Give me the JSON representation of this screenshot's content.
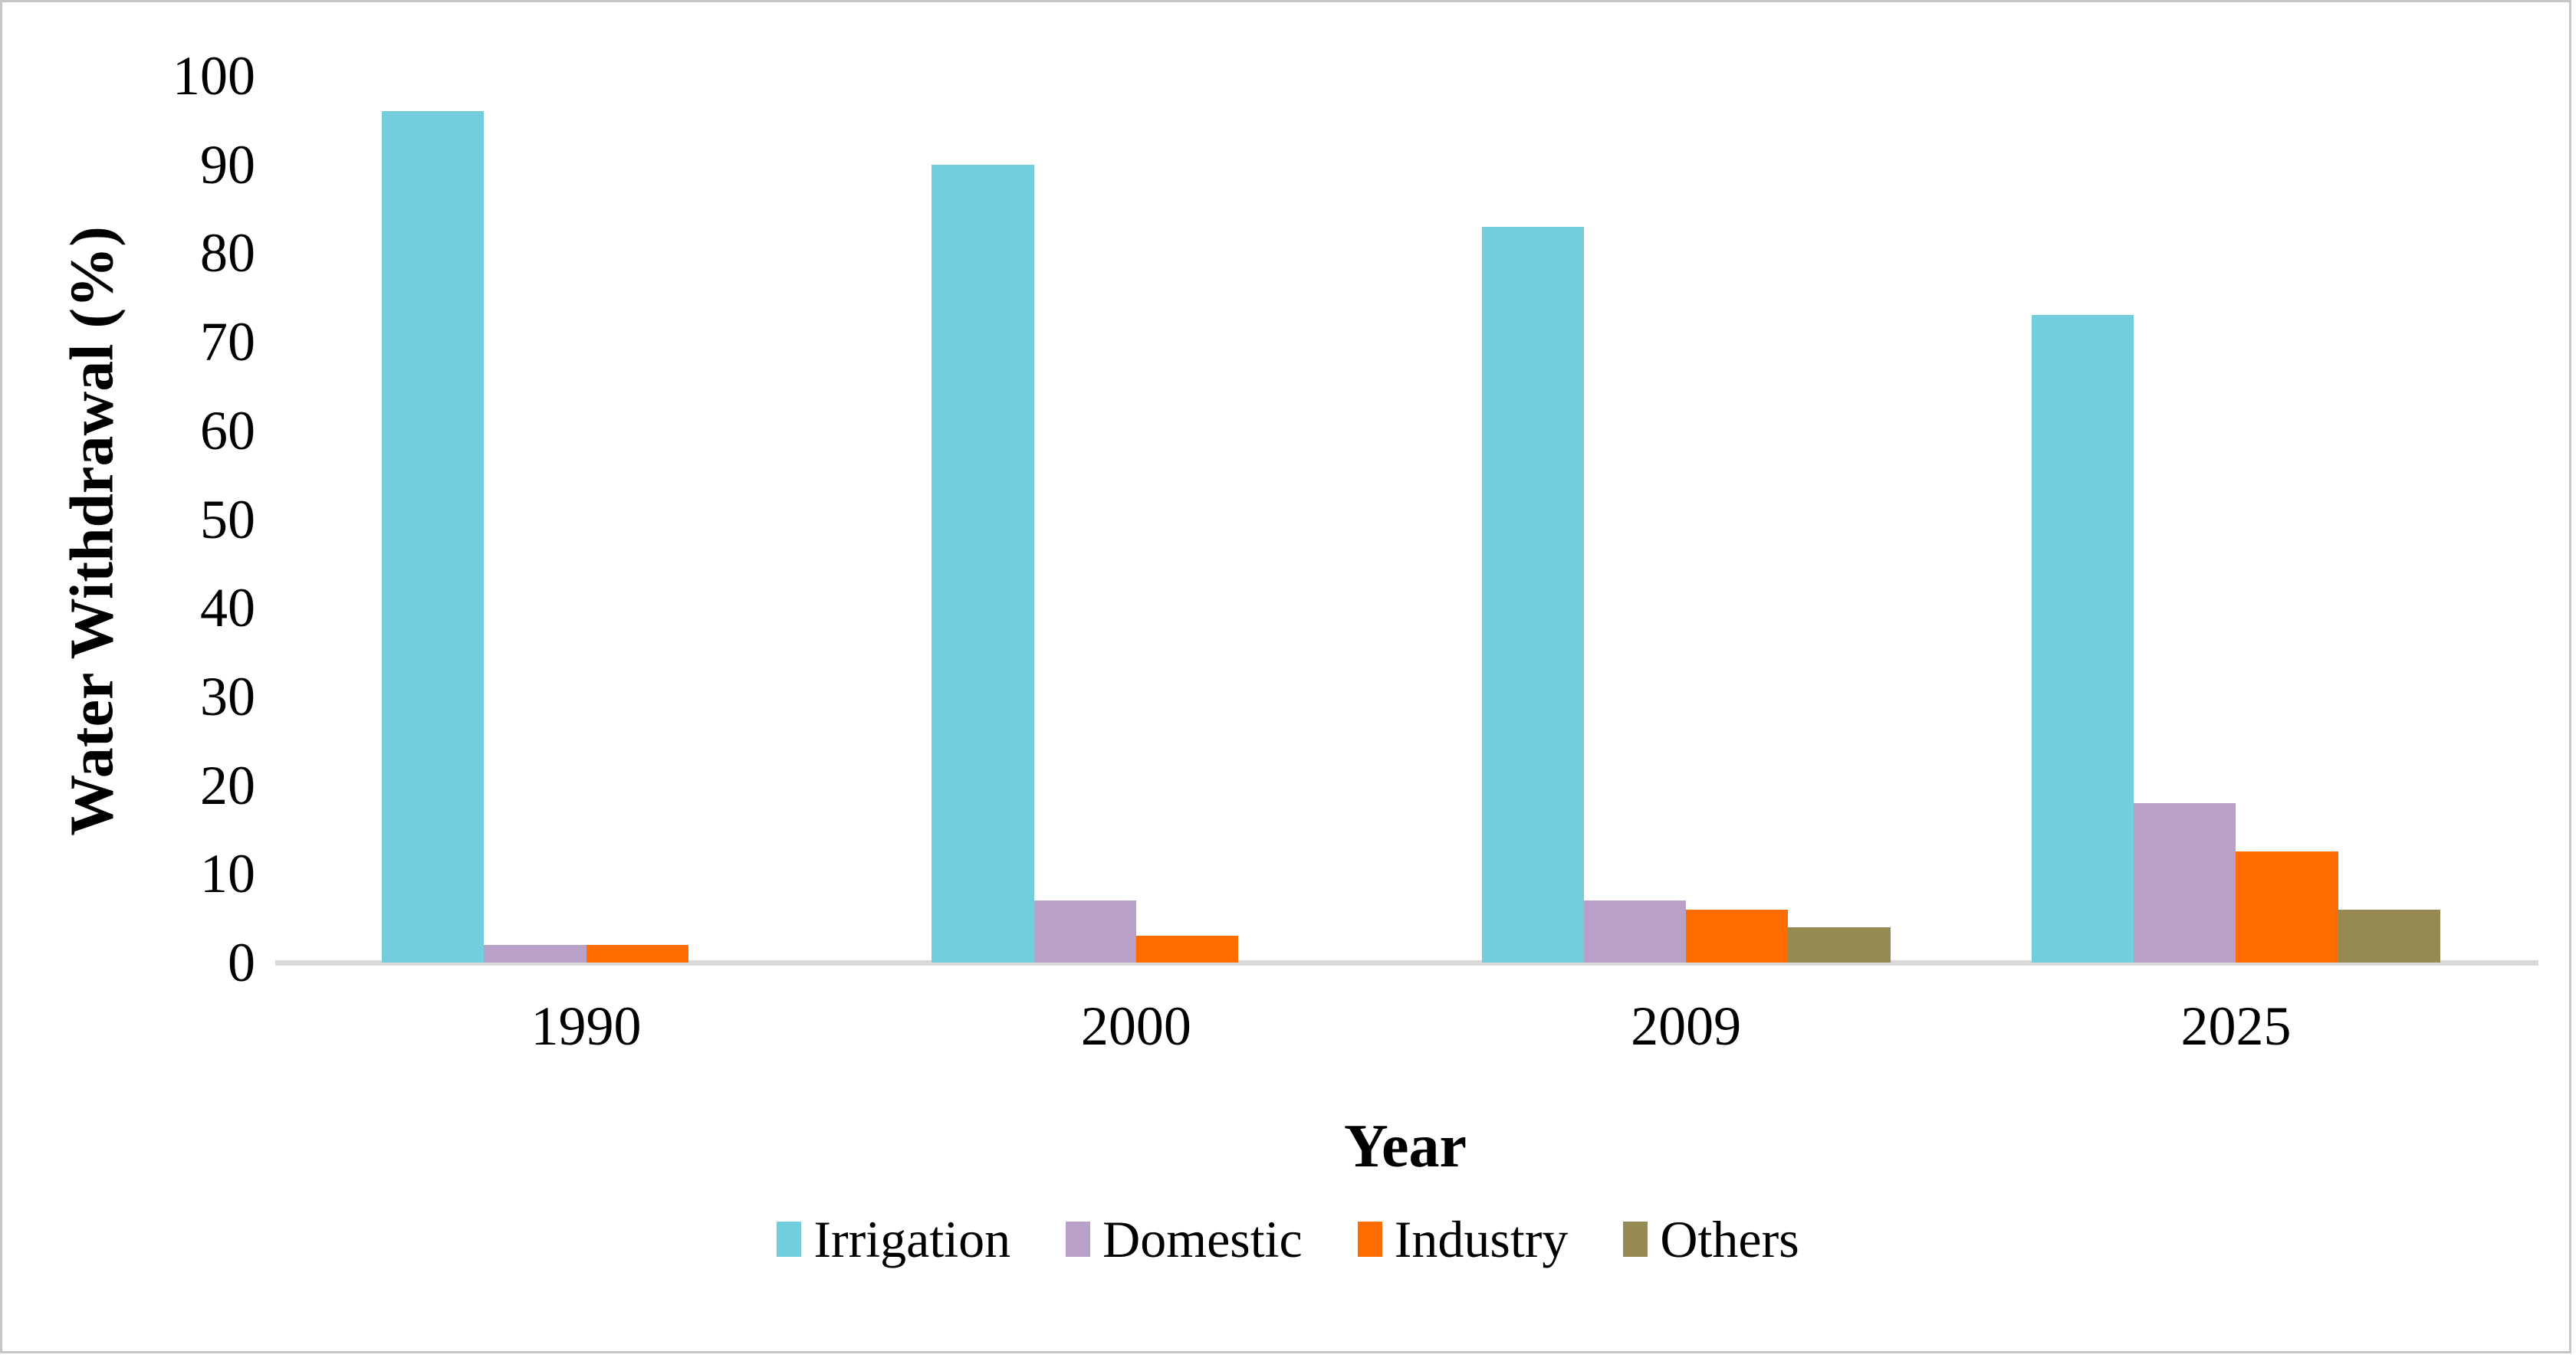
{
  "chart_data": {
    "type": "bar",
    "title": "",
    "categories": [
      "1990",
      "2000",
      "2009",
      "2025"
    ],
    "series": [
      {
        "name": "Irrigation",
        "color": "#72CDDC",
        "values": [
          96,
          90,
          83,
          73
        ]
      },
      {
        "name": "Domestic",
        "color": "#B9A0C9",
        "values": [
          2,
          7,
          7,
          18
        ]
      },
      {
        "name": "Industry",
        "color": "#FF6D01",
        "values": [
          2,
          3,
          6,
          12.5
        ]
      },
      {
        "name": "Others",
        "color": "#958A54",
        "values": [
          0,
          0,
          4,
          6
        ]
      }
    ],
    "xlabel": "Year",
    "ylabel": "Water Withdrawal (%)",
    "ylim": [
      0,
      100
    ],
    "ytick_step": 10,
    "yticks": [
      "0",
      "10",
      "20",
      "30",
      "40",
      "50",
      "60",
      "70",
      "80",
      "90",
      "100"
    ],
    "grid": false,
    "legend_position": "bottom",
    "axis_line_color": "#D9D9D9",
    "frame_border_color": "#C6C6C6",
    "text_color": "#000000"
  }
}
